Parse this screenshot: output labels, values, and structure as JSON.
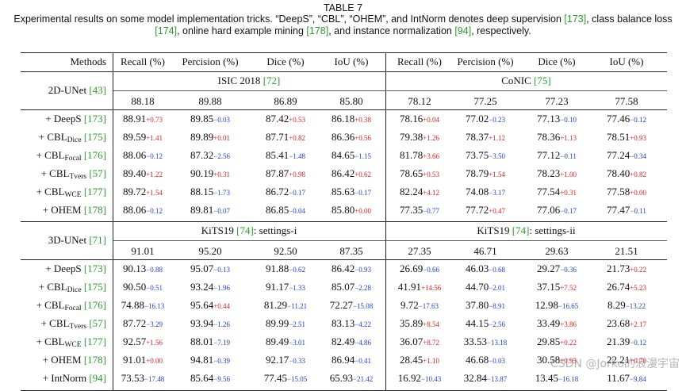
{
  "caption": {
    "title": "TABLE 7",
    "text_parts": [
      {
        "t": "Experimental results on some model implementation tricks. “DeepS”, “CBL”, “OHEM”, and IntNorm denotes deep supervision ",
        "cite": false
      },
      {
        "t": "[173]",
        "cite": true
      },
      {
        "t": ", class balance loss ",
        "cite": false
      },
      {
        "t": "[174]",
        "cite": true
      },
      {
        "t": ", online hard example mining ",
        "cite": false
      },
      {
        "t": "[178]",
        "cite": true
      },
      {
        "t": ", and instance normalization ",
        "cite": false
      },
      {
        "t": "[94]",
        "cite": true
      },
      {
        "t": ", respectively.",
        "cite": false
      }
    ]
  },
  "headers": [
    "Methods",
    "Recall (%)",
    "Percision (%)",
    "Dice (%)",
    "IoU (%)",
    "Recall (%)",
    "Percision (%)",
    "Dice (%)",
    "IoU (%)"
  ],
  "colors": {
    "positive": "#e02020",
    "negative": "#2040d0",
    "citation": "#2a9d2a"
  },
  "blocks": [
    {
      "model": "2D-UNet",
      "model_cite": "[43]",
      "dataset_left": "ISIC 2018",
      "dataset_left_cite": "[72]",
      "dataset_right": "CoNIC",
      "dataset_right_cite": "[75]",
      "baseline": [
        "88.18",
        "89.88",
        "86.89",
        "85.80",
        "78.12",
        "77.25",
        "77.23",
        "77.58"
      ],
      "rows": [
        {
          "prefix": "+ DeepS",
          "sub": "",
          "cite": "[173]",
          "cells": [
            [
              "88.91",
              "+0.73"
            ],
            [
              "89.85",
              "−0.03"
            ],
            [
              "87.42",
              "+0.53"
            ],
            [
              "86.18",
              "+0.38"
            ],
            [
              "78.16",
              "+0.04"
            ],
            [
              "77.02",
              "−0.23"
            ],
            [
              "77.13",
              "−0.10"
            ],
            [
              "77.46",
              "−0.12"
            ]
          ]
        },
        {
          "prefix": "+ CBL",
          "sub": "Dice",
          "cite": "[175]",
          "cells": [
            [
              "89.59",
              "+1.41"
            ],
            [
              "89.89",
              "+0.01"
            ],
            [
              "87.71",
              "+0.82"
            ],
            [
              "86.36",
              "+0.56"
            ],
            [
              "79.38",
              "+1.26"
            ],
            [
              "78.37",
              "+1.12"
            ],
            [
              "78.36",
              "+1.13"
            ],
            [
              "78.51",
              "+0.93"
            ]
          ]
        },
        {
          "prefix": "+ CBL",
          "sub": "Focal",
          "cite": "[176]",
          "cells": [
            [
              "88.06",
              "−0.12"
            ],
            [
              "87.32",
              "−2.56"
            ],
            [
              "85.41",
              "−1.48"
            ],
            [
              "84.65",
              "−1.15"
            ],
            [
              "81.78",
              "+3.66"
            ],
            [
              "73.75",
              "−3.50"
            ],
            [
              "77.12",
              "−0.11"
            ],
            [
              "77.24",
              "−0.34"
            ]
          ]
        },
        {
          "prefix": "+ CBL",
          "sub": "Tvers",
          "cite": "[57]",
          "cells": [
            [
              "89.40",
              "+1.22"
            ],
            [
              "90.19",
              "+0.31"
            ],
            [
              "87.87",
              "+0.98"
            ],
            [
              "86.42",
              "+0.62"
            ],
            [
              "78.65",
              "+0.53"
            ],
            [
              "78.79",
              "+1.54"
            ],
            [
              "78.23",
              "+1.00"
            ],
            [
              "78.40",
              "+0.82"
            ]
          ]
        },
        {
          "prefix": "+ CBL",
          "sub": "WCE",
          "cite": "[177]",
          "cells": [
            [
              "89.72",
              "+1.54"
            ],
            [
              "88.15",
              "−1.73"
            ],
            [
              "86.72",
              "−0.17"
            ],
            [
              "85.63",
              "−0.17"
            ],
            [
              "82.24",
              "+4.12"
            ],
            [
              "74.08",
              "−3.17"
            ],
            [
              "77.54",
              "+0.31"
            ],
            [
              "77.58",
              "+0.00"
            ]
          ]
        },
        {
          "prefix": "+ OHEM",
          "sub": "",
          "cite": "[178]",
          "cells": [
            [
              "88.06",
              "−0.12"
            ],
            [
              "89.81",
              "−0.07"
            ],
            [
              "86.85",
              "−0.04"
            ],
            [
              "85.80",
              "+0.00"
            ],
            [
              "77.35",
              "−0.77"
            ],
            [
              "77.72",
              "+0.47"
            ],
            [
              "77.06",
              "−0.17"
            ],
            [
              "77.47",
              "−0.11"
            ]
          ]
        }
      ]
    },
    {
      "model": "3D-UNet",
      "model_cite": "[71]",
      "dataset_left": "KiTS19",
      "dataset_left_cite": "[74]",
      "dataset_left_suffix": ": settings-i",
      "dataset_right": "KiTS19",
      "dataset_right_cite": "[74]",
      "dataset_right_suffix": ": settings-ii",
      "baseline": [
        "91.01",
        "95.20",
        "92.50",
        "87.35",
        "27.35",
        "46.71",
        "29.63",
        "21.51"
      ],
      "rows": [
        {
          "prefix": "+ DeepS",
          "sub": "",
          "cite": "[173]",
          "cells": [
            [
              "90.13",
              "−0.88"
            ],
            [
              "95.07",
              "−0.13"
            ],
            [
              "91.88",
              "−0.62"
            ],
            [
              "86.42",
              "−0.93"
            ],
            [
              "26.69",
              "−0.66"
            ],
            [
              "46.03",
              "−0.68"
            ],
            [
              "29.27",
              "−0.36"
            ],
            [
              "21.73",
              "+0.22"
            ]
          ]
        },
        {
          "prefix": "+ CBL",
          "sub": "Dice",
          "cite": "[175]",
          "cells": [
            [
              "90.50",
              "−0.51"
            ],
            [
              "93.24",
              "−1.96"
            ],
            [
              "91.17",
              "−1.33"
            ],
            [
              "85.07",
              "−2.28"
            ],
            [
              "41.91",
              "+14.56"
            ],
            [
              "44.70",
              "−2.01"
            ],
            [
              "37.15",
              "+7.52"
            ],
            [
              "26.74",
              "+5.23"
            ]
          ]
        },
        {
          "prefix": "+ CBL",
          "sub": "Focal",
          "cite": "[176]",
          "cells": [
            [
              "74.88",
              "−16.13"
            ],
            [
              "95.64",
              "+0.44"
            ],
            [
              "81.29",
              "−11.21"
            ],
            [
              "72.27",
              "−15.08"
            ],
            [
              "9.72",
              "−17.63"
            ],
            [
              "37.80",
              "−8.91"
            ],
            [
              "12.98",
              "−16.65"
            ],
            [
              "8.29",
              "−13.22"
            ]
          ]
        },
        {
          "prefix": "+ CBL",
          "sub": "Tvers",
          "cite": "[57]",
          "cells": [
            [
              "87.72",
              "−3.29"
            ],
            [
              "93.94",
              "−1.26"
            ],
            [
              "89.99",
              "−2.51"
            ],
            [
              "83.13",
              "−4.22"
            ],
            [
              "35.89",
              "+8.54"
            ],
            [
              "44.15",
              "−2.56"
            ],
            [
              "33.49",
              "+3.86"
            ],
            [
              "23.68",
              "+2.17"
            ]
          ]
        },
        {
          "prefix": "+ CBL",
          "sub": "WCE",
          "cite": "[177]",
          "cells": [
            [
              "92.57",
              "+1.56"
            ],
            [
              "88.01",
              "−7.19"
            ],
            [
              "89.49",
              "−3.01"
            ],
            [
              "82.49",
              "−4.86"
            ],
            [
              "36.07",
              "+8.72"
            ],
            [
              "33.53",
              "−13.18"
            ],
            [
              "29.85",
              "+0.22"
            ],
            [
              "21.39",
              "−0.12"
            ]
          ]
        },
        {
          "prefix": "+ OHEM",
          "sub": "",
          "cite": "[178]",
          "cells": [
            [
              "91.01",
              "+0.00"
            ],
            [
              "94.81",
              "−0.39"
            ],
            [
              "92.17",
              "−0.33"
            ],
            [
              "86.94",
              "−0.41"
            ],
            [
              "28.45",
              "+1.10"
            ],
            [
              "46.68",
              "−0.03"
            ],
            [
              "30.58",
              "+0.95"
            ],
            [
              "22.21",
              "+0.70"
            ]
          ]
        },
        {
          "prefix": "+ IntNorm",
          "sub": "",
          "cite": "[94]",
          "cells": [
            [
              "73.53",
              "−17.48"
            ],
            [
              "85.64",
              "−9.56"
            ],
            [
              "77.45",
              "−15.05"
            ],
            [
              "65.93",
              "−21.42"
            ],
            [
              "16.92",
              "−10.43"
            ],
            [
              "32.84",
              "−13.87"
            ],
            [
              "13.45",
              "−16.18"
            ],
            [
              "11.67",
              "−9.84"
            ]
          ]
        }
      ]
    }
  ],
  "watermark": "CSDN @Jorko的浪漫宇宙"
}
